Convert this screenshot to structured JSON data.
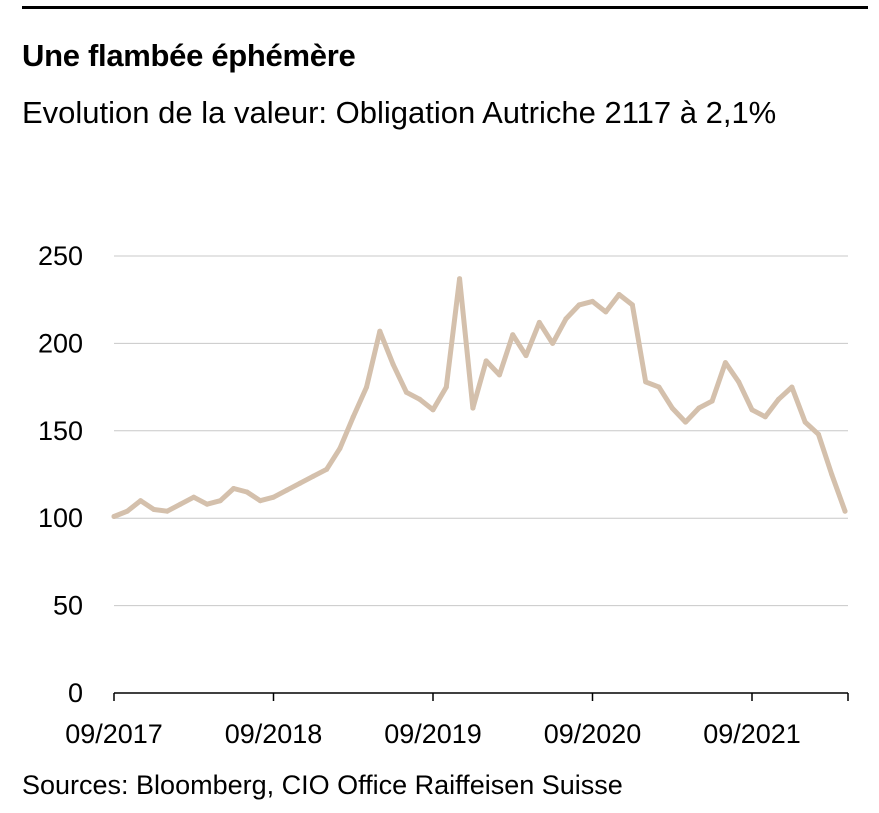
{
  "title": "Une flambée éphémère",
  "subtitle": "Evolution de la valeur: Obligation Autriche 2117 à 2,1%",
  "source": "Sources: Bloomberg, CIO Office Raiffeisen Suisse",
  "colors": {
    "line": "#d4c0ac",
    "grid": "#c8c8c8",
    "axis": "#000000"
  },
  "chart_data": {
    "type": "line",
    "title": "Une flambée éphémère",
    "subtitle": "Evolution de la valeur: Obligation Autriche 2117 à 2,1%",
    "xlabel": "",
    "ylabel": "",
    "ylim": [
      0,
      250
    ],
    "yticks": [
      0,
      50,
      100,
      150,
      200,
      250
    ],
    "xticks": [
      "09/2017",
      "09/2018",
      "09/2019",
      "09/2020",
      "09/2021"
    ],
    "grid": "horizontal",
    "legend": "none",
    "series": [
      {
        "x": [
          "2017-09",
          "2017-10",
          "2017-11",
          "2017-12",
          "2018-01",
          "2018-02",
          "2018-03",
          "2018-04",
          "2018-05",
          "2018-06",
          "2018-07",
          "2018-08",
          "2018-09",
          "2018-10",
          "2018-11",
          "2018-12",
          "2019-01",
          "2019-02",
          "2019-03",
          "2019-04",
          "2019-05",
          "2019-06",
          "2019-07",
          "2019-08",
          "2019-09",
          "2019-10",
          "2019-11",
          "2019-12",
          "2020-01",
          "2020-02",
          "2020-03",
          "2020-04",
          "2020-05",
          "2020-06",
          "2020-07",
          "2020-08",
          "2020-09",
          "2020-10",
          "2020-11",
          "2020-12",
          "2021-01",
          "2021-02",
          "2021-03",
          "2021-04",
          "2021-05",
          "2021-06",
          "2021-07",
          "2021-08",
          "2021-09",
          "2021-10",
          "2021-11",
          "2021-12",
          "2022-01",
          "2022-02",
          "2022-03",
          "2022-04"
        ],
        "values": [
          101,
          104,
          110,
          105,
          104,
          108,
          112,
          108,
          110,
          117,
          115,
          110,
          112,
          116,
          120,
          124,
          128,
          140,
          158,
          175,
          207,
          188,
          172,
          168,
          162,
          175,
          237,
          163,
          190,
          182,
          205,
          193,
          212,
          200,
          214,
          222,
          224,
          218,
          228,
          222,
          178,
          175,
          163,
          155,
          163,
          167,
          189,
          178,
          162,
          158,
          168,
          175,
          155,
          148,
          125,
          104
        ]
      }
    ]
  }
}
